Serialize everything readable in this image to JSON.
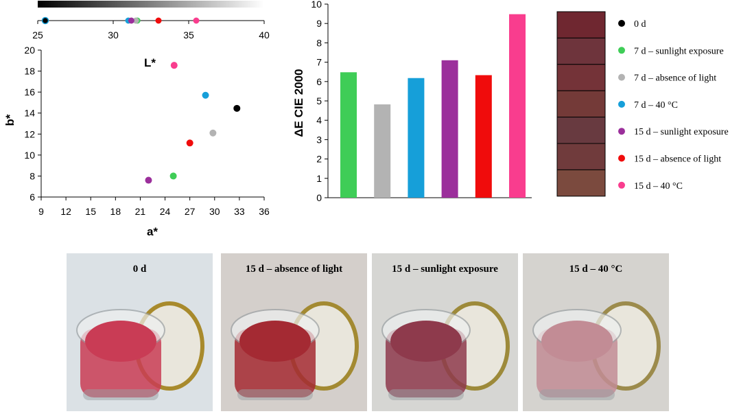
{
  "colors": {
    "series": [
      "#000000",
      "#3fcd57",
      "#b3b3b3",
      "#169fd9",
      "#9b2f9b",
      "#f00c0c",
      "#f93d8e"
    ],
    "swatches": [
      "#6f2730",
      "#6e343c",
      "#743338",
      "#743a38",
      "#683a40",
      "#703b3c",
      "#7b4a3e"
    ]
  },
  "chart_data": [
    {
      "type": "scatter",
      "name": "L-scale",
      "title": "",
      "xlabel": "L*",
      "xlim": [
        25,
        40
      ],
      "xticks": [
        "25",
        "30",
        "35",
        "40"
      ],
      "gradient_bar": true,
      "points": [
        {
          "legend_index": 0,
          "x": 25.5
        },
        {
          "legend_index": 1,
          "x": 31.6
        },
        {
          "legend_index": 2,
          "x": 31.5
        },
        {
          "legend_index": 3,
          "x": 31.0
        },
        {
          "legend_index": 4,
          "x": 31.2
        },
        {
          "legend_index": 5,
          "x": 33.0
        },
        {
          "legend_index": 6,
          "x": 35.5
        }
      ]
    },
    {
      "type": "scatter",
      "name": "a-b-plane",
      "title": "",
      "xlabel": "a*",
      "ylabel": "b*",
      "xlim": [
        9,
        36
      ],
      "ylim": [
        6,
        20
      ],
      "xticks": [
        "9",
        "12",
        "15",
        "18",
        "21",
        "24",
        "27",
        "30",
        "33",
        "36"
      ],
      "yticks": [
        "6",
        "8",
        "10",
        "12",
        "14",
        "16",
        "18",
        "20"
      ],
      "points": [
        {
          "legend_index": 0,
          "x": 32.7,
          "y": 14.45
        },
        {
          "legend_index": 1,
          "x": 25.0,
          "y": 8.0
        },
        {
          "legend_index": 2,
          "x": 29.8,
          "y": 12.1
        },
        {
          "legend_index": 3,
          "x": 28.9,
          "y": 15.7
        },
        {
          "legend_index": 4,
          "x": 22.0,
          "y": 7.6
        },
        {
          "legend_index": 5,
          "x": 27.0,
          "y": 11.15
        },
        {
          "legend_index": 6,
          "x": 25.1,
          "y": 18.55
        }
      ]
    },
    {
      "type": "bar",
      "name": "delta-e",
      "title": "",
      "ylabel": "ΔE CIE 2000",
      "ylim": [
        0,
        10
      ],
      "yticks": [
        "0",
        "1",
        "2",
        "3",
        "4",
        "5",
        "6",
        "7",
        "8",
        "9",
        "10"
      ],
      "categories": [
        "7 d – sunlight exposure",
        "7 d – absence of light",
        "7 d – 40 °C",
        "15 d – sunlight exposure",
        "15 d – absence of light",
        "15 d – 40 °C"
      ],
      "values": [
        6.48,
        4.82,
        6.18,
        7.1,
        6.33,
        9.48
      ],
      "color_indices": [
        1,
        2,
        3,
        4,
        5,
        6
      ]
    }
  ],
  "legend": {
    "items": [
      "0 d",
      "7 d – sunlight exposure",
      "7 d – absence of light",
      "7 d – 40 °C",
      "15 d – sunlight exposure",
      "15 d – absence of light",
      "15 d – 40 °C"
    ]
  },
  "photos": [
    {
      "label": "0 d",
      "background": "#dbe1e5",
      "content": "#c93c55",
      "cap": "#a88a2c"
    },
    {
      "label": "15 d – absence of light",
      "background": "#d4cfcb",
      "content": "#a42a33",
      "cap": "#a38a32"
    },
    {
      "label": "15 d – sunlight exposure",
      "background": "#d6d6d3",
      "content": "#8e3a4c",
      "cap": "#9d8a3a"
    },
    {
      "label": "15 d – 40 °C",
      "background": "#d5d3cf",
      "content": "#c28c95",
      "cap": "#9c8b4c"
    }
  ]
}
